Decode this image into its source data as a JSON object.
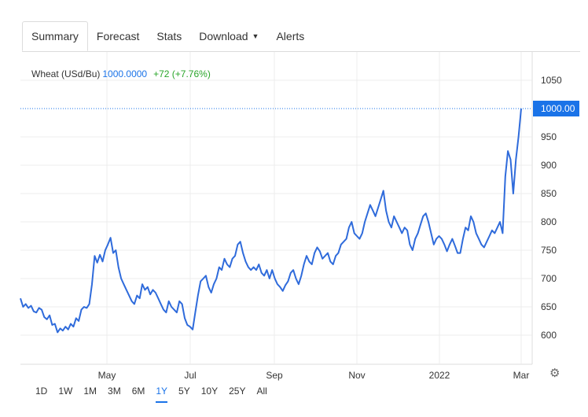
{
  "tabs": {
    "summary": "Summary",
    "forecast": "Forecast",
    "stats": "Stats",
    "download": "Download",
    "alerts": "Alerts"
  },
  "legend": {
    "name": "Wheat (USd/Bu)",
    "price": "1000.0000",
    "change": "+72 (+7.76%)"
  },
  "ranges": [
    "1D",
    "1W",
    "1M",
    "3M",
    "6M",
    "1Y",
    "5Y",
    "10Y",
    "25Y",
    "All"
  ],
  "active_range": "1Y",
  "colors": {
    "line": "#2f6bdb",
    "price_label": "#1a73e8",
    "change": "#2aa52a"
  },
  "icons": {
    "settings": "gear-icon"
  },
  "chart_data": {
    "type": "line",
    "title": "",
    "xlabel": "",
    "ylabel": "",
    "x_ticks": [
      "May",
      "Jul",
      "Sep",
      "Nov",
      "2022",
      "Mar"
    ],
    "y_ticks": [
      600,
      650,
      700,
      750,
      800,
      850,
      900,
      950,
      1050
    ],
    "ylim": [
      550,
      1100
    ],
    "last_value_label": "1000.00",
    "grid": true,
    "series": [
      {
        "values": [
          665,
          650,
          655,
          648,
          652,
          642,
          640,
          648,
          645,
          632,
          628,
          635,
          618,
          620,
          605,
          612,
          608,
          615,
          610,
          620,
          615,
          630,
          625,
          645,
          650,
          648,
          655,
          690,
          740,
          728,
          742,
          730,
          750,
          760,
          772,
          745,
          750,
          720,
          700,
          690,
          680,
          670,
          660,
          655,
          670,
          665,
          690,
          680,
          685,
          672,
          680,
          675,
          665,
          655,
          645,
          640,
          660,
          650,
          645,
          640,
          660,
          655,
          630,
          618,
          615,
          610,
          640,
          670,
          695,
          700,
          705,
          685,
          675,
          690,
          700,
          720,
          715,
          735,
          725,
          720,
          735,
          740,
          760,
          765,
          745,
          730,
          720,
          715,
          720,
          715,
          725,
          710,
          705,
          715,
          700,
          715,
          700,
          690,
          685,
          678,
          688,
          695,
          710,
          715,
          700,
          690,
          705,
          725,
          740,
          730,
          725,
          745,
          755,
          748,
          735,
          740,
          745,
          730,
          725,
          740,
          745,
          760,
          765,
          770,
          790,
          800,
          780,
          775,
          770,
          780,
          800,
          815,
          830,
          820,
          810,
          825,
          840,
          855,
          820,
          800,
          790,
          810,
          800,
          790,
          780,
          790,
          785,
          760,
          750,
          770,
          780,
          795,
          810,
          815,
          800,
          780,
          760,
          770,
          775,
          770,
          760,
          748,
          760,
          770,
          758,
          745,
          745,
          770,
          790,
          785,
          810,
          800,
          780,
          770,
          760,
          755,
          765,
          775,
          785,
          780,
          790,
          800,
          780,
          880,
          925,
          910,
          850,
          910,
          950,
          1000
        ]
      }
    ]
  }
}
